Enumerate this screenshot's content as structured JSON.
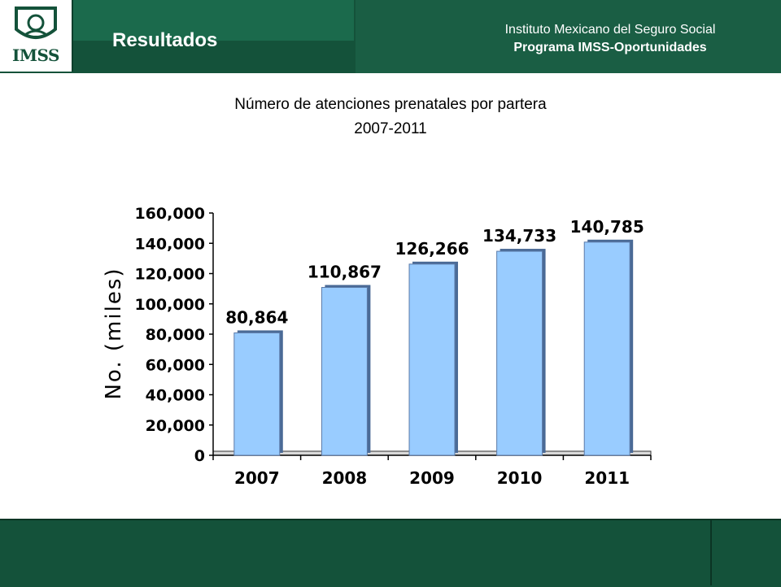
{
  "header": {
    "logo_text": "IMSS",
    "section_title": "Resultados",
    "institute": "Instituto Mexicano del Seguro Social",
    "program": "Programa IMSS-Oportunidades"
  },
  "chart_data": {
    "type": "bar",
    "title": "Número de atenciones prenatales por partera",
    "subtitle": "2007-2011",
    "xlabel": "",
    "ylabel": "No. (miles)",
    "categories": [
      "2007",
      "2008",
      "2009",
      "2010",
      "2011"
    ],
    "values": [
      80864,
      110867,
      126266,
      134733,
      140785
    ],
    "data_labels": [
      "80,864",
      "110,867",
      "126,266",
      "134,733",
      "140,785"
    ],
    "ylim": [
      0,
      160000
    ],
    "yticks": [
      "0",
      "20,000",
      "40,000",
      "60,000",
      "80,000",
      "100,000",
      "120,000",
      "140,000",
      "160,000"
    ],
    "bar_color": "#99ccff",
    "grid": false
  }
}
